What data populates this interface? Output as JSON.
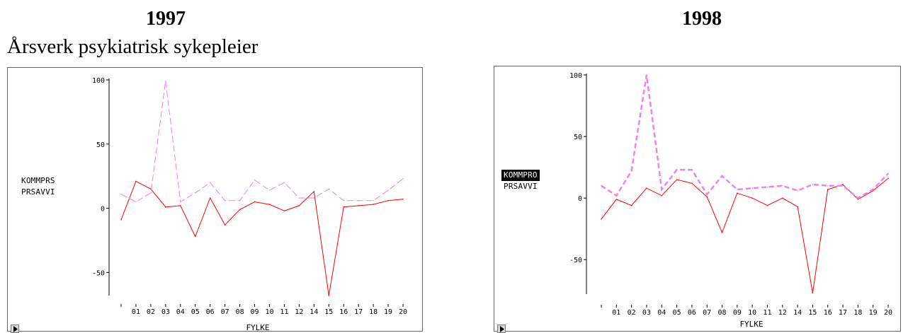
{
  "titles": {
    "left": "1997",
    "right": "1998"
  },
  "subtitle": "Årsverk psykiatrisk sykepleier",
  "chart_data": [
    {
      "type": "line",
      "title": "1997",
      "xlabel": "FYLKE",
      "ylabel": "",
      "categories": [
        "",
        "01",
        "02",
        "03",
        "04",
        "05",
        "06",
        "07",
        "08",
        "09",
        "10",
        "11",
        "12",
        "14",
        "15",
        "16",
        "17",
        "18",
        "19",
        "20"
      ],
      "yticks": [
        100,
        50,
        0,
        -50
      ],
      "ylim": [
        -68,
        100
      ],
      "legend": [
        "KOMMPRS",
        "PRSAVVI"
      ],
      "legend_highlight": -1,
      "series": [
        {
          "name": "KOMMPRS",
          "color": "#ff0000",
          "style": "solid",
          "values": [
            -9,
            21,
            15,
            1,
            2,
            -22,
            8,
            -13,
            -1,
            5,
            3,
            -2,
            2,
            13,
            -68,
            1,
            2,
            3,
            6,
            7
          ]
        },
        {
          "name": "PRSAVVI",
          "color": "#ee82ee",
          "style": "dashed",
          "values": [
            11,
            5,
            12,
            99,
            5,
            12,
            20,
            6,
            6,
            22,
            14,
            20,
            8,
            8,
            15,
            6,
            6,
            6,
            14,
            23
          ]
        }
      ]
    },
    {
      "type": "line",
      "title": "1998",
      "xlabel": "FYLKE",
      "ylabel": "",
      "categories": [
        "",
        "01",
        "02",
        "03",
        "04",
        "05",
        "06",
        "07",
        "08",
        "09",
        "10",
        "11",
        "12",
        "14",
        "15",
        "16",
        "17",
        "18",
        "19",
        "20"
      ],
      "yticks": [
        100,
        50,
        0,
        -50
      ],
      "ylim": [
        -78,
        100
      ],
      "legend": [
        "KOMMPRO",
        "PRSAVVI"
      ],
      "legend_highlight": 0,
      "series": [
        {
          "name": "KOMMPRO",
          "color": "#ff0000",
          "style": "solid",
          "values": [
            -17,
            -1,
            -6,
            8,
            2,
            15,
            12,
            1,
            -28,
            4,
            0,
            -6,
            0,
            -7,
            -77,
            7,
            11,
            -1,
            6,
            16
          ]
        },
        {
          "name": "PRSAVVI",
          "color": "#ee82ee",
          "style": "dashed",
          "values": [
            10,
            2,
            22,
            100,
            7,
            23,
            23,
            3,
            18,
            7,
            8,
            9,
            10,
            6,
            11,
            10,
            10,
            0,
            7,
            20
          ]
        }
      ]
    }
  ]
}
